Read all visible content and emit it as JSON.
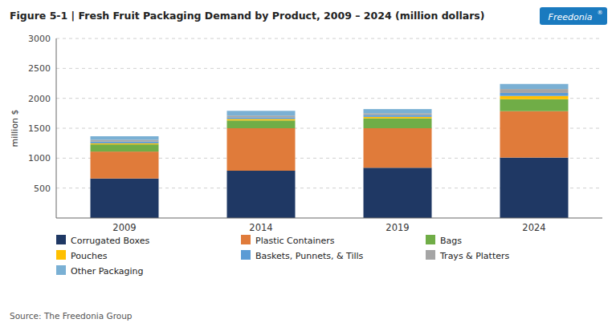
{
  "chart_data": {
    "type": "bar",
    "stacked": true,
    "title": "Figure 5-1 | Fresh Fruit Packaging Demand by Product, 2009 – 2024 (million dollars)",
    "annotations": [
      "Source: The Freedonia Group",
      "Freedonia",
      "®"
    ],
    "categories": [
      "2009",
      "2014",
      "2019",
      "2024"
    ],
    "series": [
      {
        "name": "Corrugated Boxes",
        "color": "#1f3864",
        "values": [
          660,
          790,
          840,
          1010
        ]
      },
      {
        "name": "Plastic Containers",
        "color": "#e07b3a",
        "values": [
          450,
          710,
          660,
          775
        ]
      },
      {
        "name": "Bags",
        "color": "#70ad47",
        "values": [
          120,
          130,
          165,
          200
        ]
      },
      {
        "name": "Pouches",
        "color": "#ffc000",
        "values": [
          18,
          25,
          25,
          55
        ]
      },
      {
        "name": "Baskets, Punnets, & Tills",
        "color": "#5b9bd5",
        "values": [
          28,
          28,
          32,
          50
        ]
      },
      {
        "name": "Trays & Platters",
        "color": "#a5a5a5",
        "values": [
          30,
          28,
          28,
          65
        ]
      },
      {
        "name": "Other Packaging",
        "color": "#7ab0d4",
        "values": [
          60,
          80,
          70,
          85
        ]
      }
    ],
    "ylabel": "million $",
    "ylim": [
      0,
      3000
    ],
    "yticks": [
      500,
      1000,
      1500,
      2000,
      2500,
      3000
    ],
    "grid": true,
    "legend": "bottom"
  }
}
